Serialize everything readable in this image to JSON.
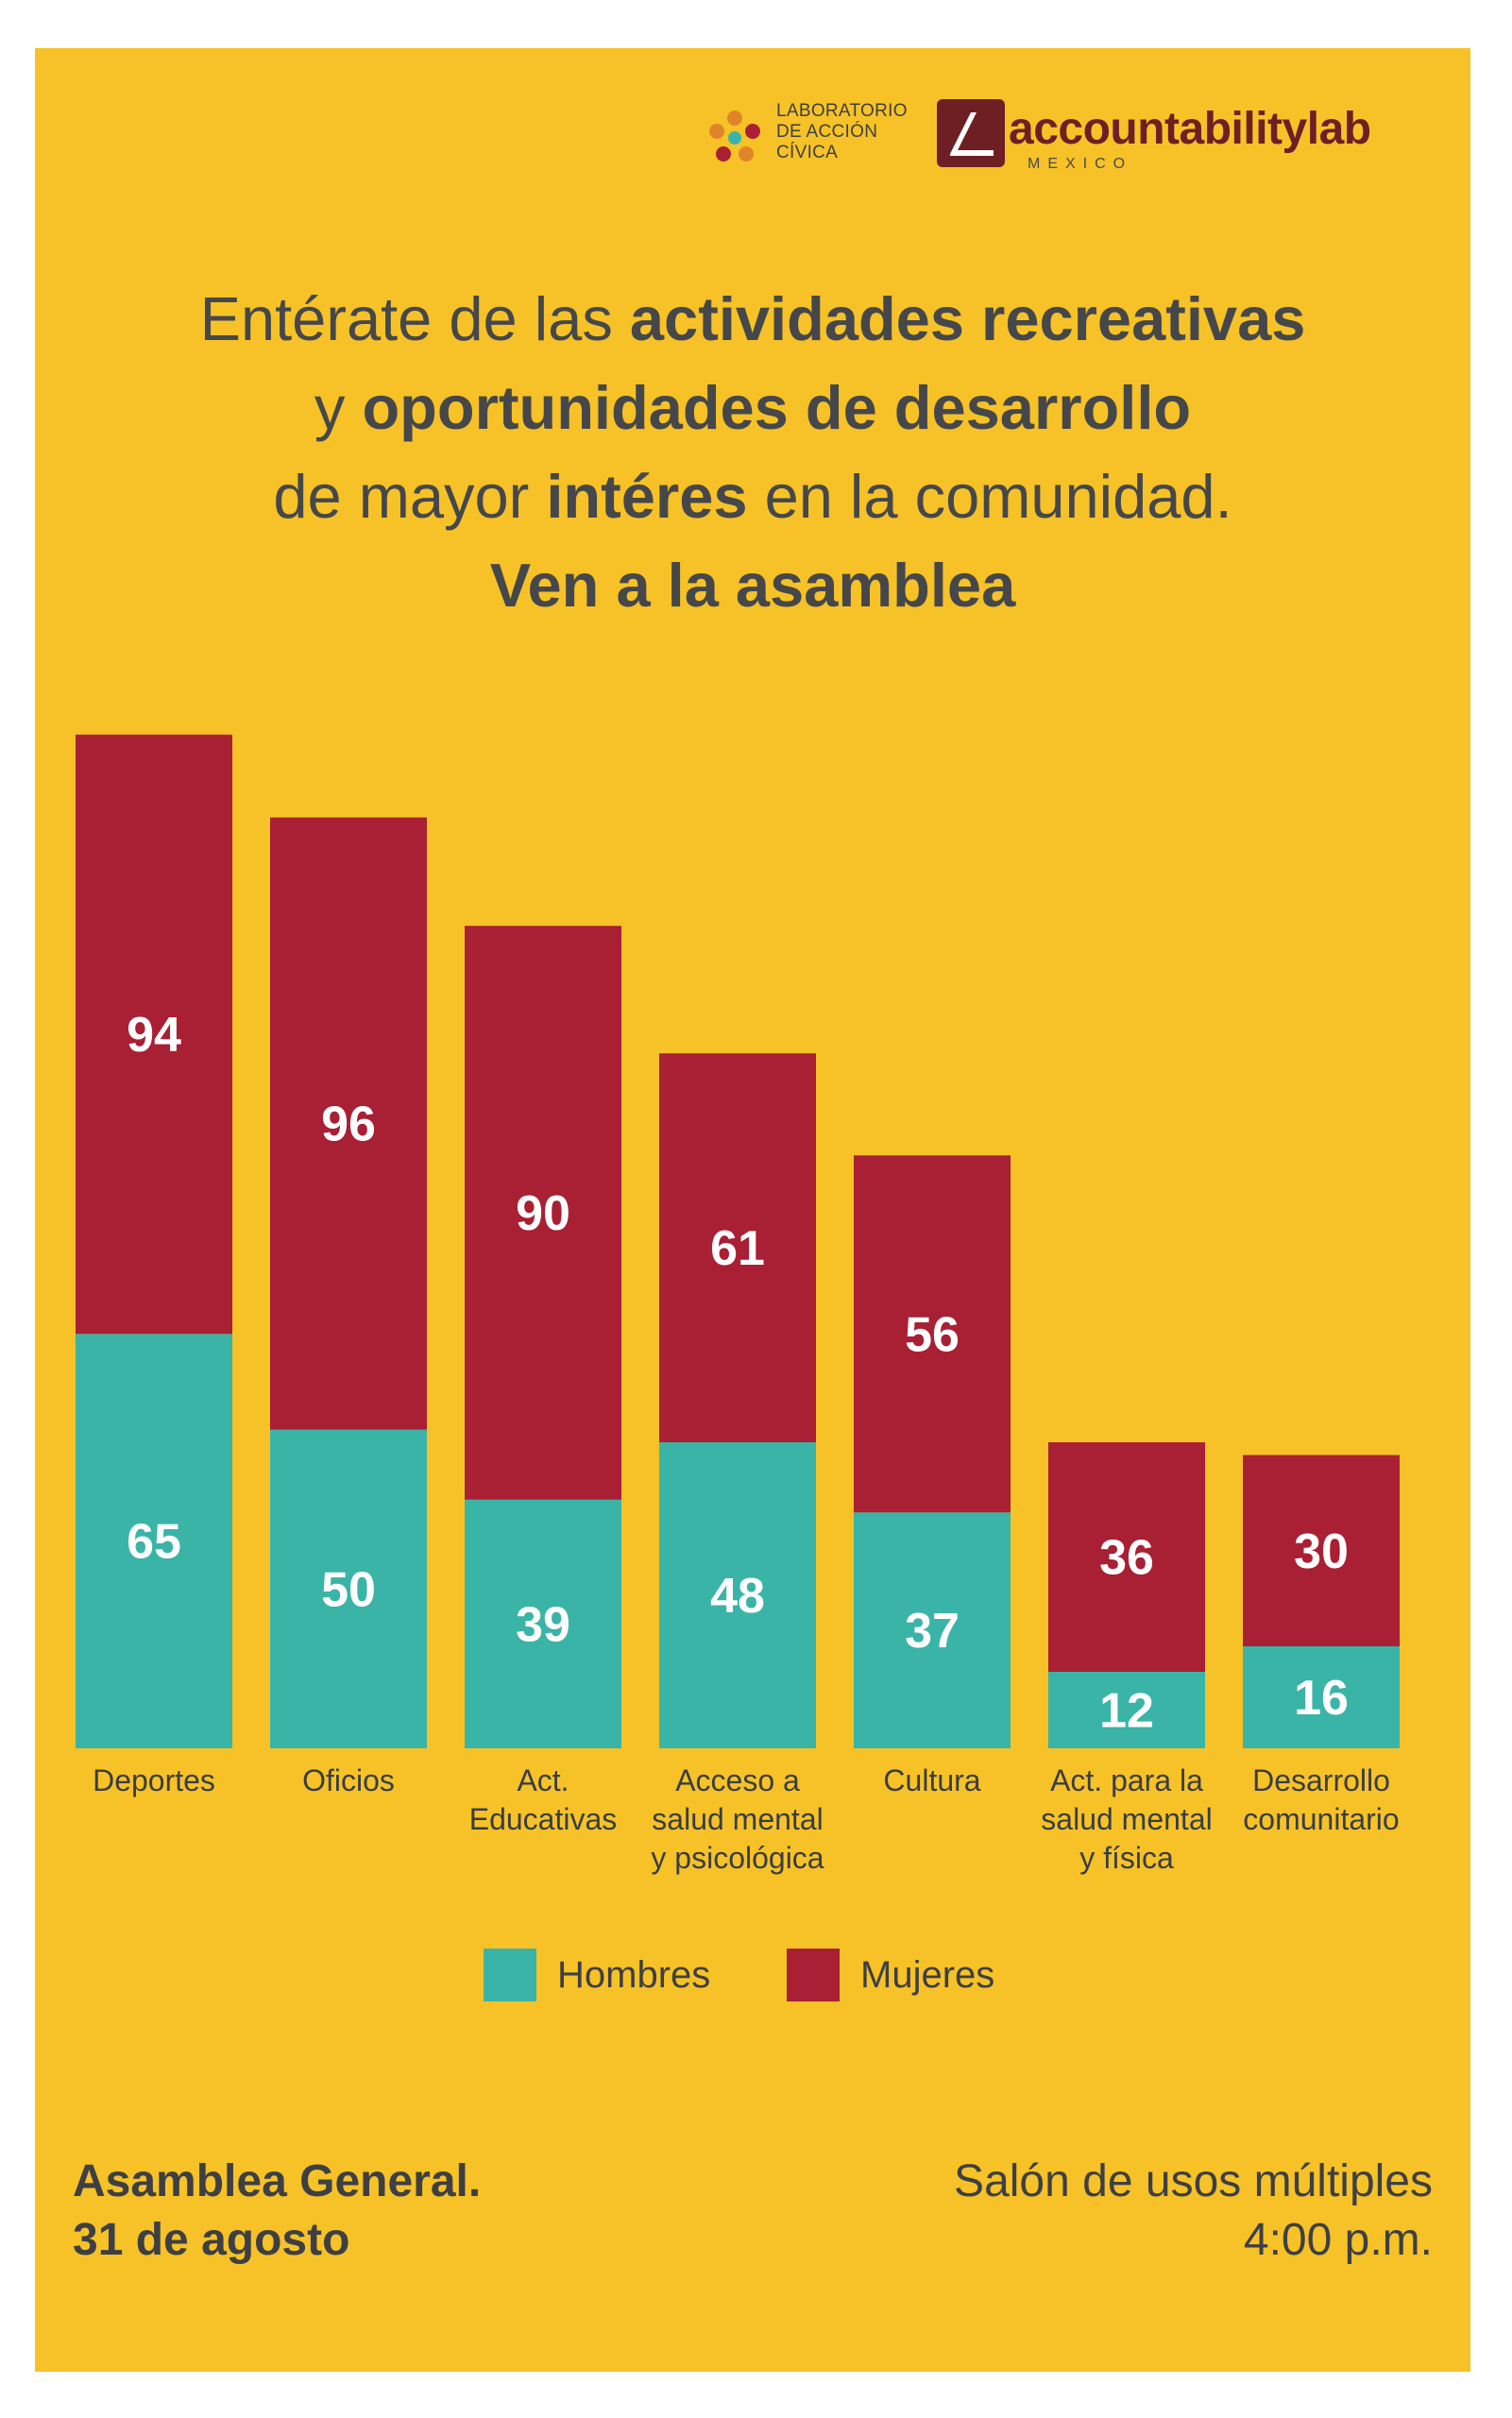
{
  "colors": {
    "background": "#f6c227",
    "hombres": "#3bb4a8",
    "mujeres": "#a91f33",
    "text": "#3d3f43"
  },
  "logos": {
    "lac_lines": [
      "LABORATORIO",
      "DE ACCIÓN",
      "CÍVICA"
    ],
    "al_word": "accountabilitylab",
    "al_sub": "MEXICO"
  },
  "headline": {
    "line1_a": "Entérate de las ",
    "line1_b": "actividades recreativas",
    "line2_a": "y ",
    "line2_b": "oportunidades de desarrollo",
    "line3_a": "de mayor ",
    "line3_b": "intéres",
    "line3_c": " en la comunidad.",
    "line4": "Ven a la asamblea"
  },
  "chart_data": {
    "type": "bar",
    "stacked": true,
    "categories": [
      [
        "Deportes"
      ],
      [
        "Oficios"
      ],
      [
        "Act.",
        "Educativas"
      ],
      [
        "Acceso a",
        "salud mental",
        "y psicológica"
      ],
      [
        "Cultura"
      ],
      [
        "Act. para la",
        "salud mental",
        "y física"
      ],
      [
        "Desarrollo",
        "comunitario"
      ]
    ],
    "series": [
      {
        "name": "Hombres",
        "color": "#3bb4a8",
        "values": [
          65,
          50,
          39,
          48,
          37,
          12,
          16
        ]
      },
      {
        "name": "Mujeres",
        "color": "#a91f33",
        "values": [
          94,
          96,
          90,
          61,
          56,
          36,
          30
        ]
      }
    ],
    "legend": "bottom-center",
    "grid": false,
    "axes_visible": false
  },
  "footer": {
    "left_line1": "Asamblea General.",
    "left_line2": "31 de agosto",
    "right_line1": "Salón de usos múltiples",
    "right_line2": "4:00 p.m."
  }
}
